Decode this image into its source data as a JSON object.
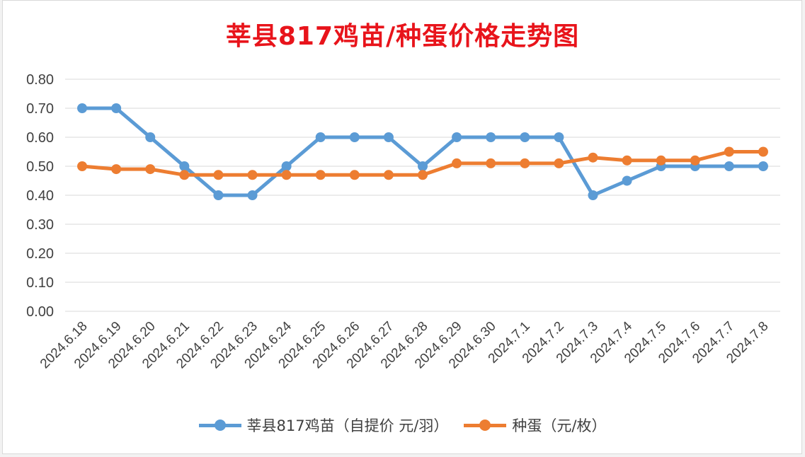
{
  "chart_data": {
    "type": "line",
    "title": "莘县817鸡苗/种蛋价格走势图",
    "categories": [
      "2024.6.18",
      "2024.6.19",
      "2024.6.20",
      "2024.6.21",
      "2024.6.22",
      "2024.6.23",
      "2024.6.24",
      "2024.6.25",
      "2024.6.26",
      "2024.6.27",
      "2024.6.28",
      "2024.6.29",
      "2024.6.30",
      "2024.7.1",
      "2024.7.2",
      "2024.7.3",
      "2024.7.4",
      "2024.7.5",
      "2024.7.6",
      "2024.7.7",
      "2024.7.8"
    ],
    "series": [
      {
        "name": "莘县817鸡苗（自提价 元/羽）",
        "color": "#5b9bd5",
        "values": [
          0.7,
          0.7,
          0.6,
          0.5,
          0.4,
          0.4,
          0.5,
          0.6,
          0.6,
          0.6,
          0.5,
          0.6,
          0.6,
          0.6,
          0.6,
          0.4,
          0.45,
          0.5,
          0.5,
          0.5,
          0.5
        ]
      },
      {
        "name": "种蛋（元/枚）",
        "color": "#ed7d31",
        "values": [
          0.5,
          0.49,
          0.49,
          0.47,
          0.47,
          0.47,
          0.47,
          0.47,
          0.47,
          0.47,
          0.47,
          0.51,
          0.51,
          0.51,
          0.51,
          0.53,
          0.52,
          0.52,
          0.52,
          0.55,
          0.55
        ]
      }
    ],
    "ylim": [
      0,
      0.8
    ],
    "yticks": [
      "0.00",
      "0.10",
      "0.20",
      "0.30",
      "0.40",
      "0.50",
      "0.60",
      "0.70",
      "0.80"
    ],
    "grid": true,
    "legend_position": "bottom"
  }
}
